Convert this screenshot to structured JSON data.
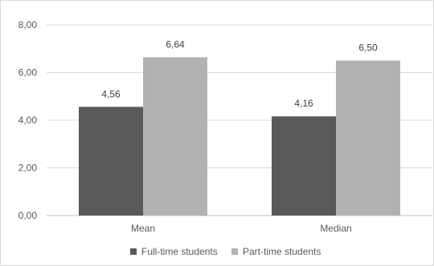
{
  "chart_data": {
    "type": "bar",
    "categories": [
      "Mean",
      "Median"
    ],
    "series": [
      {
        "name": "Full-time students",
        "values": [
          4.56,
          4.16
        ],
        "labels": [
          "4,56",
          "4,16"
        ],
        "color": "#595959"
      },
      {
        "name": "Part-time students",
        "values": [
          6.64,
          6.5
        ],
        "labels": [
          "6,64",
          "6,50"
        ],
        "color": "#b2b2b2"
      }
    ],
    "yticks": [
      0,
      2,
      4,
      6,
      8
    ],
    "ytick_labels": [
      "0,00",
      "2,00",
      "4,00",
      "6,00",
      "8,00"
    ],
    "ylim": [
      0,
      8
    ],
    "grid": true,
    "legend_position": "bottom"
  }
}
